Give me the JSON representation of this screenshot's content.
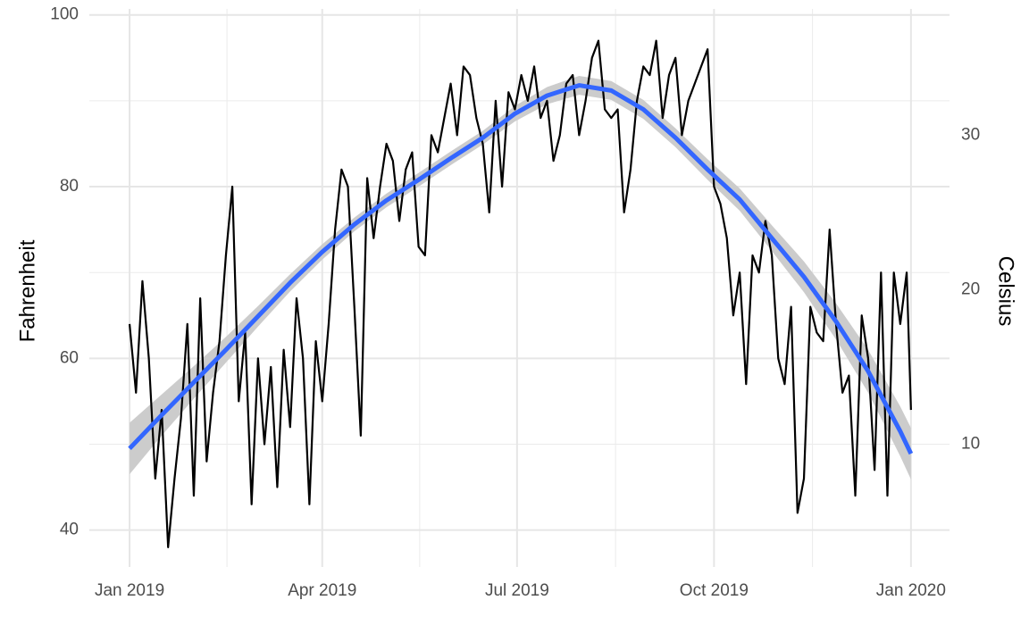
{
  "chart_data": {
    "type": "line",
    "y_label": "Fahrenheit",
    "y2_label": "Celsius",
    "xlim": [
      -18.8,
      383
    ],
    "ylim": [
      35.7,
      100.7
    ],
    "y2lim": [
      2.06,
      38.17
    ],
    "xticks": [
      {
        "value": 0,
        "label": "Jan 2019"
      },
      {
        "value": 90,
        "label": "Apr 2019"
      },
      {
        "value": 181,
        "label": "Jul 2019"
      },
      {
        "value": 273,
        "label": "Oct 2019"
      },
      {
        "value": 365,
        "label": "Jan 2020"
      }
    ],
    "xminor": [
      45.5,
      135.5,
      227,
      319
    ],
    "yticks": [
      40,
      60,
      80,
      100
    ],
    "yminor": [
      50,
      70,
      90
    ],
    "y2ticks": [
      10,
      20,
      30
    ],
    "grid": true,
    "color": "#000000",
    "x": [
      0,
      3,
      6,
      9,
      12,
      15,
      18,
      21,
      24,
      27,
      30,
      33,
      36,
      39,
      42,
      45,
      48,
      51,
      54,
      57,
      60,
      63,
      66,
      69,
      72,
      75,
      78,
      81,
      84,
      87,
      90,
      93,
      96,
      99,
      102,
      105,
      108,
      111,
      114,
      117,
      120,
      123,
      126,
      129,
      132,
      135,
      138,
      141,
      144,
      147,
      150,
      153,
      156,
      159,
      162,
      165,
      168,
      171,
      174,
      177,
      180,
      183,
      186,
      189,
      192,
      195,
      198,
      201,
      204,
      207,
      210,
      213,
      216,
      219,
      222,
      225,
      228,
      231,
      234,
      237,
      240,
      243,
      246,
      249,
      252,
      255,
      258,
      261,
      264,
      267,
      270,
      273,
      276,
      279,
      282,
      285,
      288,
      291,
      294,
      297,
      300,
      303,
      306,
      309,
      312,
      315,
      318,
      321,
      324,
      327,
      330,
      333,
      336,
      339,
      342,
      345,
      348,
      351,
      354,
      357,
      360,
      363,
      365
    ],
    "values": [
      64,
      56,
      69,
      60,
      46,
      54,
      38,
      46,
      53,
      64,
      44,
      67,
      48,
      56,
      62,
      72,
      80,
      55,
      63,
      43,
      60,
      50,
      59,
      45,
      61,
      52,
      67,
      60,
      43,
      62,
      55,
      64,
      75,
      82,
      80,
      66,
      51,
      81,
      74,
      80,
      85,
      83,
      76,
      82,
      84,
      73,
      72,
      86,
      84,
      88,
      92,
      86,
      94,
      93,
      88,
      85,
      77,
      90,
      80,
      91,
      89,
      93,
      90,
      94,
      88,
      90,
      83,
      86,
      92,
      93,
      86,
      90,
      95,
      97,
      89,
      88,
      89,
      77,
      82,
      90,
      94,
      93,
      97,
      88,
      93,
      95,
      86,
      90,
      92,
      94,
      96,
      80,
      78,
      74,
      65,
      70,
      57,
      72,
      70,
      76,
      72,
      60,
      57,
      66,
      42,
      46,
      66,
      63,
      62,
      75,
      64,
      56,
      58,
      44,
      65,
      60,
      47,
      70,
      44,
      70,
      64,
      70,
      54
    ],
    "smooth_color": "#3366ff",
    "smooth_x": [
      0,
      15,
      30,
      45,
      60,
      75,
      90,
      105,
      120,
      135,
      150,
      165,
      180,
      195,
      210,
      225,
      240,
      255,
      270,
      285,
      300,
      315,
      330,
      345,
      360,
      365
    ],
    "smooth": [
      49.5,
      53.4,
      57.2,
      61,
      64.9,
      68.8,
      72.4,
      75.6,
      78.4,
      80.8,
      83.3,
      85.7,
      88.5,
      90.6,
      91.8,
      91.2,
      89,
      85.7,
      82,
      78.5,
      74,
      69.5,
      64.3,
      58.5,
      51.5,
      48.9
    ],
    "smooth_lower": [
      46.5,
      51,
      55.3,
      59.5,
      63.7,
      67.8,
      71.5,
      74.8,
      77.6,
      80,
      82.5,
      84.9,
      87.6,
      89.6,
      90.7,
      90.1,
      87.9,
      84.6,
      80.8,
      77.2,
      72.5,
      67.7,
      62.2,
      56,
      48.6,
      45.9
    ],
    "smooth_upper": [
      52.5,
      55.8,
      59.1,
      62.5,
      66.1,
      69.8,
      73.3,
      76.4,
      79.2,
      81.6,
      84.1,
      86.5,
      89.4,
      91.6,
      92.9,
      92.3,
      90.1,
      86.8,
      83.2,
      79.8,
      75.5,
      71.3,
      66.4,
      61,
      54.4,
      51.9
    ],
    "ribbon_color": "#cccccc"
  }
}
